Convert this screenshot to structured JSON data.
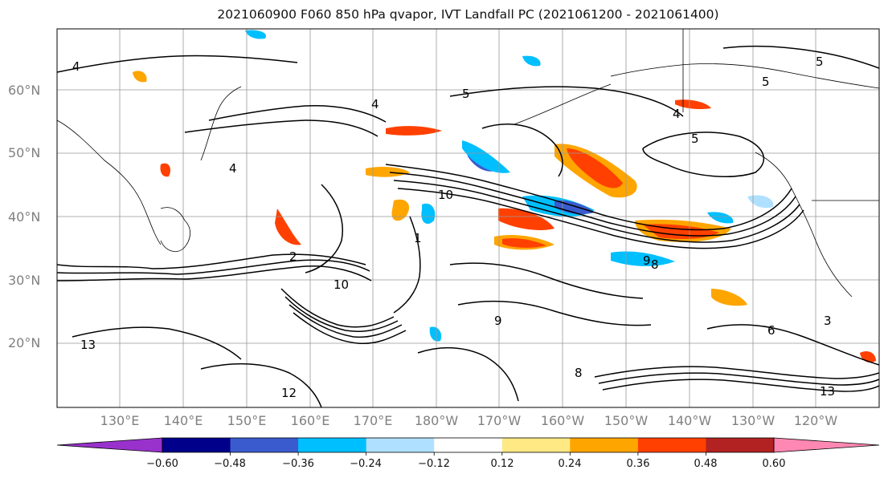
{
  "title": "2021060900 F060 850 hPa qvapor, IVT Landfall PC (2021061200 - 2021061400)",
  "lat_labels": [
    "60°N",
    "50°N",
    "40°N",
    "30°N",
    "20°N"
  ],
  "lon_labels": [
    "130°E",
    "140°E",
    "150°E",
    "160°E",
    "170°E",
    "180°W",
    "170°W",
    "160°W",
    "150°W",
    "140°W",
    "130°W",
    "120°W"
  ],
  "colorbar": {
    "colors": [
      "#9932cc",
      "#00008b",
      "#3a5bcd",
      "#00bfff",
      "#b0e0ff",
      "#ffffff",
      "#ffe985",
      "#ffa500",
      "#ff4000",
      "#b22222",
      "#ff88b2"
    ],
    "tick_labels": [
      "−0.60",
      "−0.48",
      "−0.36",
      "−0.24",
      "−0.12",
      "0.12",
      "0.24",
      "0.36",
      "0.48",
      "0.60"
    ],
    "extend": "both"
  },
  "contour_labels": [
    "4",
    "5",
    "4",
    "5",
    "5",
    "4",
    "4",
    "10",
    "10",
    "9",
    "9",
    "8",
    "8",
    "6",
    "3",
    "2",
    "1",
    "13",
    "12",
    "13",
    "5"
  ]
}
